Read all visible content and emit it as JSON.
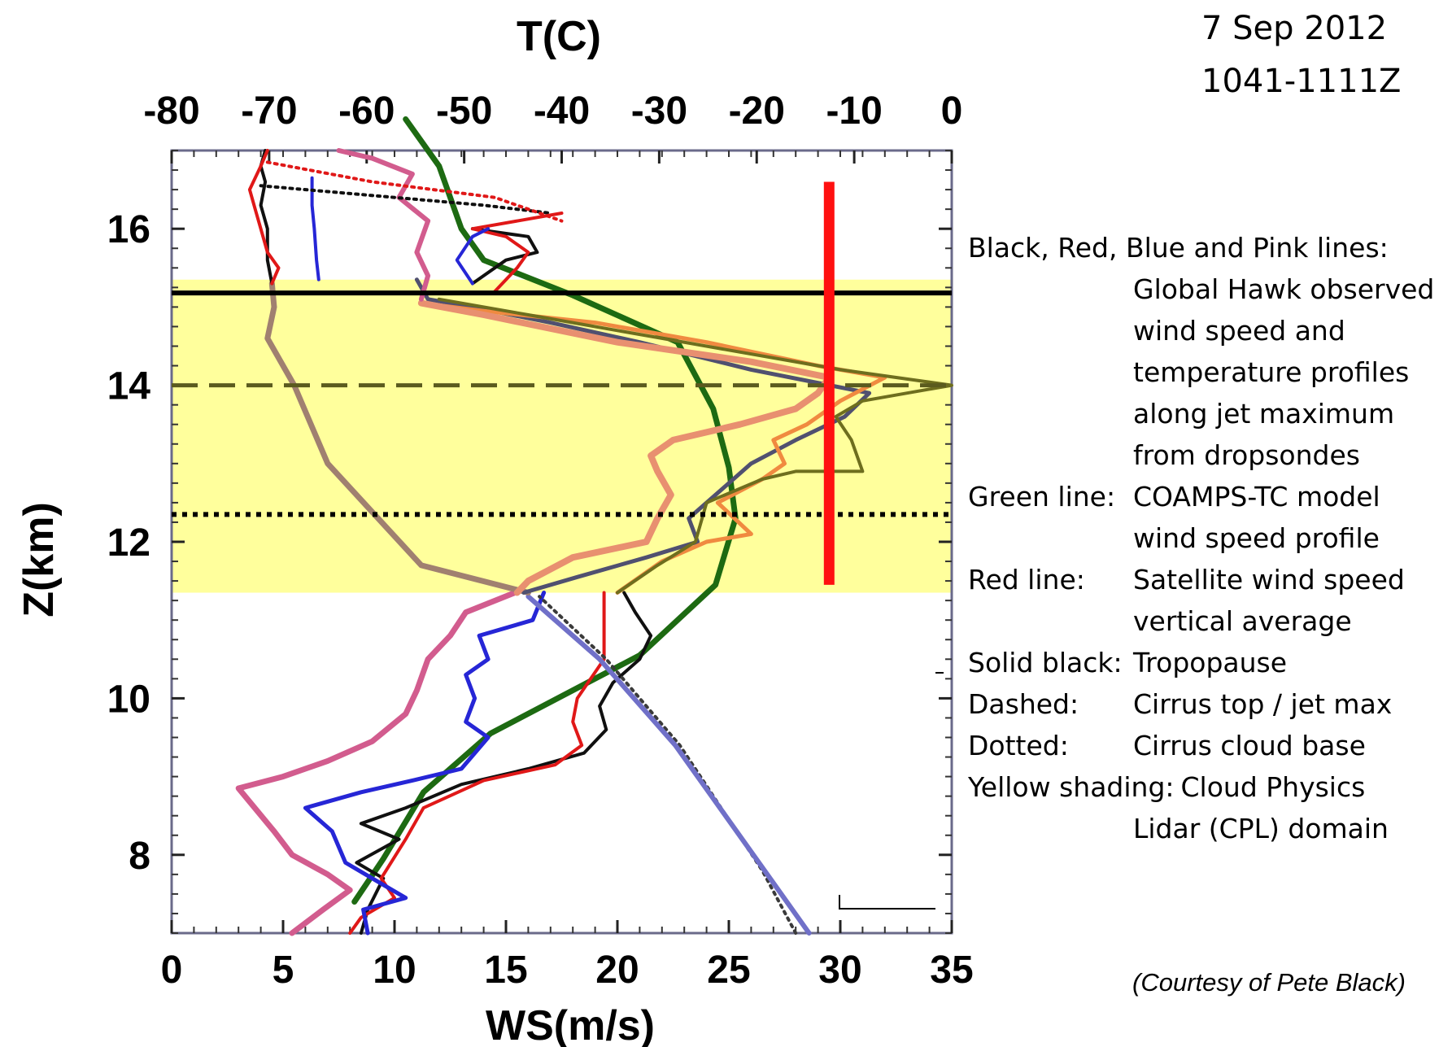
{
  "date": "7 Sep 2012",
  "time_range": "1041-1111Z",
  "courtesy": "(Courtesy of Pete Black)",
  "legend": [
    {
      "label": "Black, Red, Blue and Pink lines:",
      "desc": ""
    },
    {
      "label": "",
      "desc": "Global Hawk observed"
    },
    {
      "label": "",
      "desc": "wind speed and"
    },
    {
      "label": "",
      "desc": "temperature profiles"
    },
    {
      "label": "",
      "desc": "along jet maximum"
    },
    {
      "label": "",
      "desc": "from dropsondes"
    },
    {
      "label": "Green line:",
      "desc": "COAMPS-TC model"
    },
    {
      "label": "",
      "desc": "wind speed profile"
    },
    {
      "label": "Red line:",
      "desc": "Satellite wind speed"
    },
    {
      "label": "",
      "desc": "vertical average"
    },
    {
      "label": "Solid black:",
      "desc": "Tropopause"
    },
    {
      "label": "Dashed:",
      "desc": "Cirrus top / jet max"
    },
    {
      "label": "Dotted:",
      "desc": "Cirrus cloud base"
    },
    {
      "label": "Yellow shading:",
      "desc": "Cloud Physics"
    },
    {
      "label": "",
      "desc": "Lidar (CPL) domain"
    }
  ],
  "chart_data": {
    "type": "line",
    "xlabel": "WS(m/s)",
    "x2label": "T(C)",
    "ylabel": "Z(km)",
    "xlim": [
      0,
      35
    ],
    "x2lim": [
      -80,
      0
    ],
    "ylim": [
      7,
      17
    ],
    "xticks": [
      "0",
      "5",
      "10",
      "15",
      "20",
      "25",
      "30",
      "35"
    ],
    "x2ticks": [
      "-80",
      "-70",
      "-60",
      "-50",
      "-40",
      "-30",
      "-20",
      "-10",
      "0"
    ],
    "yticks": [
      "8",
      "10",
      "12",
      "14",
      "16"
    ],
    "ytick_values": [
      8,
      10,
      12,
      14,
      16
    ],
    "cpl_domain": [
      11.35,
      15.35
    ],
    "tropopause_z": 15.18,
    "cirrus_top_z": 14.0,
    "cirrus_base_z": 12.35,
    "satellite_ws": {
      "value": 29.5,
      "z": [
        11.45,
        16.6
      ],
      "color": "#ff1010"
    },
    "colors": {
      "shading": "#ffff9c",
      "tropopause": "#000000",
      "dashed": "#5b5b1e",
      "dotted": "#000000",
      "model": "#1d6a12"
    },
    "series": [
      {
        "name": "Green line",
        "color": "#1d6a12",
        "width": 7,
        "style": "solid",
        "points": [
          [
            8.2,
            7.4
          ],
          [
            9.5,
            7.95
          ],
          [
            11.3,
            8.8
          ],
          [
            14.3,
            9.55
          ],
          [
            21.0,
            10.55
          ],
          [
            24.4,
            11.45
          ],
          [
            25.3,
            12.3
          ],
          [
            25.0,
            12.95
          ],
          [
            24.3,
            13.7
          ],
          [
            22.7,
            14.55
          ],
          [
            18.0,
            15.15
          ],
          [
            14.0,
            15.6
          ],
          [
            13.0,
            16.0
          ],
          [
            12.0,
            16.8
          ],
          [
            10.5,
            17.4
          ]
        ]
      },
      {
        "color": "#101010",
        "width": 4,
        "style": "solid",
        "points": [
          [
            8.5,
            7.0
          ],
          [
            8.8,
            7.3
          ],
          [
            9.5,
            7.7
          ],
          [
            8.3,
            7.9
          ],
          [
            10.2,
            8.2
          ],
          [
            8.5,
            8.4
          ],
          [
            10.5,
            8.6
          ],
          [
            13.0,
            8.9
          ],
          [
            16.0,
            9.1
          ],
          [
            18.5,
            9.3
          ],
          [
            19.5,
            9.6
          ],
          [
            19.2,
            9.9
          ],
          [
            19.8,
            10.2
          ],
          [
            21.0,
            10.5
          ],
          [
            21.5,
            10.8
          ],
          [
            20.8,
            11.1
          ],
          [
            20.3,
            11.35
          ]
        ]
      },
      {
        "color": "#e01818",
        "width": 4,
        "style": "solid",
        "points": [
          [
            8.0,
            7.0
          ],
          [
            8.5,
            7.2
          ],
          [
            10.0,
            7.45
          ],
          [
            9.4,
            7.7
          ],
          [
            10.5,
            8.2
          ],
          [
            11.3,
            8.6
          ],
          [
            14.0,
            8.95
          ],
          [
            17.2,
            9.15
          ],
          [
            18.4,
            9.4
          ],
          [
            18.0,
            9.7
          ],
          [
            18.2,
            10.0
          ],
          [
            19.4,
            10.5
          ],
          [
            19.4,
            11.35
          ]
        ]
      },
      {
        "color": "#2626d6",
        "width": 5,
        "style": "solid",
        "points": [
          [
            8.8,
            7.0
          ],
          [
            8.6,
            7.3
          ],
          [
            10.5,
            7.45
          ],
          [
            9.0,
            7.7
          ],
          [
            7.8,
            7.9
          ],
          [
            7.2,
            8.3
          ],
          [
            6.0,
            8.6
          ],
          [
            8.5,
            8.8
          ],
          [
            10.8,
            8.95
          ],
          [
            13.0,
            9.1
          ],
          [
            14.2,
            9.5
          ],
          [
            13.2,
            9.7
          ],
          [
            13.6,
            10.0
          ],
          [
            13.2,
            10.3
          ],
          [
            14.2,
            10.5
          ],
          [
            13.8,
            10.8
          ],
          [
            16.2,
            11.0
          ],
          [
            16.7,
            11.35
          ]
        ]
      },
      {
        "color": "#d25c8e",
        "width": 7,
        "style": "solid",
        "points": [
          [
            5.4,
            7.0
          ],
          [
            6.8,
            7.3
          ],
          [
            8.0,
            7.55
          ],
          [
            7.0,
            7.75
          ],
          [
            5.4,
            8.0
          ],
          [
            4.6,
            8.3
          ],
          [
            3.0,
            8.85
          ],
          [
            5.0,
            9.0
          ],
          [
            7.0,
            9.2
          ],
          [
            9.0,
            9.45
          ],
          [
            10.5,
            9.8
          ],
          [
            11.0,
            10.1
          ],
          [
            11.5,
            10.5
          ],
          [
            12.5,
            10.8
          ],
          [
            13.2,
            11.1
          ],
          [
            15.4,
            11.35
          ]
        ]
      },
      {
        "color": "#3a3a3a",
        "width": 4,
        "style": "dotted",
        "points": [
          [
            28.0,
            7.0
          ],
          [
            26.5,
            7.8
          ],
          [
            22.8,
            9.4
          ],
          [
            19.5,
            10.5
          ],
          [
            16.5,
            11.3
          ]
        ]
      },
      {
        "color": "#7070c8",
        "width": 6,
        "style": "solid",
        "points": [
          [
            28.6,
            7.0
          ],
          [
            26.6,
            7.8
          ],
          [
            22.6,
            9.4
          ],
          [
            19.2,
            10.5
          ],
          [
            16.0,
            11.3
          ]
        ]
      },
      {
        "color": "#a08070",
        "width": 7,
        "style": "solid",
        "points": [
          [
            16.0,
            11.35
          ],
          [
            11.2,
            11.7
          ],
          [
            7.0,
            13.0
          ],
          [
            5.5,
            14.0
          ],
          [
            4.3,
            14.6
          ],
          [
            4.6,
            15.0
          ],
          [
            4.5,
            15.3
          ]
        ]
      },
      {
        "color": "#505070",
        "width": 5,
        "style": "solid",
        "points": [
          [
            15.8,
            11.35
          ],
          [
            18.2,
            11.55
          ],
          [
            21.3,
            11.8
          ],
          [
            23.6,
            12.0
          ],
          [
            23.2,
            12.3
          ],
          [
            24.8,
            12.7
          ],
          [
            26.0,
            13.0
          ],
          [
            28.0,
            13.3
          ],
          [
            30.2,
            13.6
          ],
          [
            31.3,
            13.9
          ],
          [
            26.0,
            14.2
          ],
          [
            21.0,
            14.55
          ],
          [
            17.0,
            14.8
          ],
          [
            13.5,
            15.0
          ],
          [
            11.5,
            15.1
          ],
          [
            11.0,
            15.35
          ]
        ]
      },
      {
        "color": "#f08a40",
        "width": 5,
        "style": "solid",
        "points": [
          [
            20.0,
            11.35
          ],
          [
            22.0,
            11.75
          ],
          [
            24.0,
            12.0
          ],
          [
            26.0,
            12.1
          ],
          [
            24.5,
            12.5
          ],
          [
            26.5,
            12.8
          ],
          [
            27.5,
            13.0
          ],
          [
            27.0,
            13.3
          ],
          [
            28.5,
            13.5
          ],
          [
            30.0,
            13.8
          ],
          [
            32.0,
            14.1
          ],
          [
            29.0,
            14.25
          ],
          [
            24.0,
            14.55
          ],
          [
            19.0,
            14.8
          ],
          [
            14.0,
            14.95
          ],
          [
            11.2,
            15.05
          ]
        ]
      },
      {
        "color": "#6e6e1e",
        "width": 4,
        "style": "solid",
        "points": [
          [
            20.0,
            11.35
          ],
          [
            21.8,
            11.7
          ],
          [
            23.5,
            12.0
          ],
          [
            24.0,
            12.5
          ],
          [
            26.5,
            12.8
          ],
          [
            28.0,
            12.9
          ],
          [
            31.0,
            12.9
          ],
          [
            30.5,
            13.3
          ],
          [
            29.8,
            13.6
          ],
          [
            31.0,
            13.8
          ],
          [
            35.0,
            14.0
          ],
          [
            30.0,
            14.2
          ],
          [
            22.0,
            14.6
          ],
          [
            16.0,
            14.9
          ],
          [
            12.0,
            15.1
          ]
        ]
      },
      {
        "color": "#e89070",
        "width": 8,
        "style": "solid",
        "points": [
          [
            15.5,
            11.35
          ],
          [
            16.0,
            11.5
          ],
          [
            18.0,
            11.8
          ],
          [
            21.3,
            12.0
          ],
          [
            21.8,
            12.3
          ],
          [
            22.4,
            12.6
          ],
          [
            21.8,
            12.9
          ],
          [
            21.5,
            13.1
          ],
          [
            22.5,
            13.3
          ],
          [
            25.5,
            13.5
          ],
          [
            28.0,
            13.7
          ],
          [
            29.0,
            13.9
          ],
          [
            29.5,
            14.1
          ],
          [
            26.0,
            14.3
          ],
          [
            20.0,
            14.55
          ],
          [
            14.0,
            14.9
          ],
          [
            11.2,
            15.05
          ]
        ]
      },
      {
        "color": "#101010",
        "width": 4,
        "style": "solid",
        "points": [
          [
            4.5,
            15.3
          ],
          [
            4.3,
            15.6
          ],
          [
            4.3,
            16.0
          ],
          [
            4.0,
            16.3
          ],
          [
            4.2,
            16.6
          ],
          [
            4.0,
            16.8
          ],
          [
            4.2,
            17.0
          ]
        ]
      },
      {
        "color": "#e01818",
        "width": 4,
        "style": "solid",
        "points": [
          [
            4.5,
            15.3
          ],
          [
            4.8,
            15.5
          ],
          [
            4.3,
            15.7
          ],
          [
            4.0,
            16.0
          ],
          [
            3.8,
            16.2
          ],
          [
            3.5,
            16.5
          ],
          [
            4.0,
            16.8
          ],
          [
            4.3,
            17.0
          ]
        ]
      },
      {
        "color": "#2626d6",
        "width": 4,
        "style": "solid",
        "points": [
          [
            6.6,
            15.35
          ],
          [
            6.5,
            15.6
          ],
          [
            6.4,
            16.0
          ],
          [
            6.3,
            16.3
          ],
          [
            6.3,
            16.65
          ]
        ]
      },
      {
        "color": "#d25c8e",
        "width": 6,
        "style": "solid",
        "points": [
          [
            11.2,
            15.1
          ],
          [
            11.5,
            15.4
          ],
          [
            11.0,
            15.7
          ],
          [
            11.5,
            16.1
          ],
          [
            10.2,
            16.4
          ],
          [
            10.8,
            16.7
          ],
          [
            9.0,
            16.9
          ],
          [
            7.5,
            17.0
          ]
        ]
      },
      {
        "color": "#101010",
        "width": 4,
        "style": "dotted",
        "points": [
          [
            4.0,
            16.55
          ],
          [
            8.0,
            16.45
          ],
          [
            14.0,
            16.3
          ],
          [
            17.0,
            16.2
          ]
        ]
      },
      {
        "color": "#e01818",
        "width": 4,
        "style": "dotted",
        "points": [
          [
            4.3,
            16.85
          ],
          [
            9.0,
            16.6
          ],
          [
            14.5,
            16.4
          ],
          [
            17.5,
            16.1
          ]
        ]
      },
      {
        "color": "#101010",
        "width": 4,
        "style": "solid",
        "points": [
          [
            13.5,
            15.3
          ],
          [
            15.0,
            15.6
          ],
          [
            16.4,
            15.7
          ],
          [
            16.0,
            15.9
          ],
          [
            13.5,
            16.0
          ]
        ]
      },
      {
        "color": "#e01818",
        "width": 4,
        "style": "solid",
        "points": [
          [
            14.5,
            15.2
          ],
          [
            15.5,
            15.5
          ],
          [
            16.0,
            15.7
          ],
          [
            15.0,
            15.9
          ],
          [
            13.5,
            16.0
          ],
          [
            17.5,
            16.2
          ]
        ]
      },
      {
        "color": "#2626d6",
        "width": 4,
        "style": "solid",
        "points": [
          [
            13.5,
            15.3
          ],
          [
            12.8,
            15.6
          ],
          [
            13.5,
            15.9
          ],
          [
            14.2,
            16.0
          ]
        ]
      }
    ]
  }
}
